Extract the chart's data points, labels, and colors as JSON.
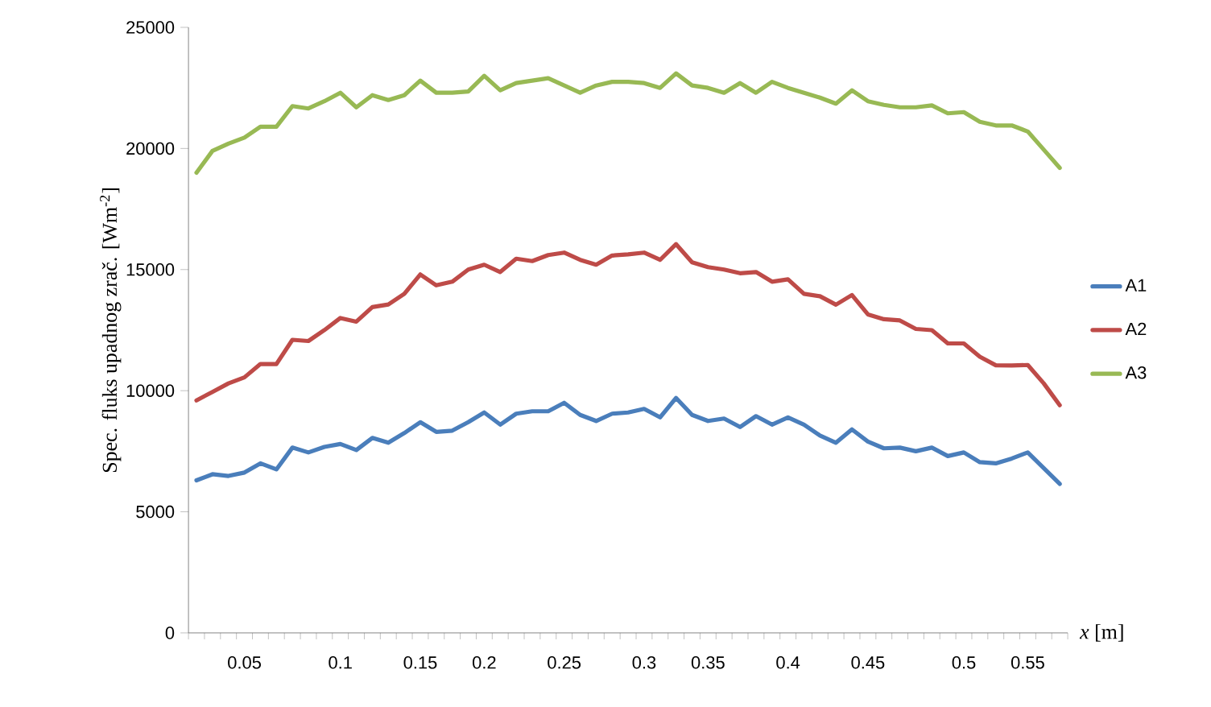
{
  "chart_data": {
    "type": "line",
    "xlabel": "*x* [m]",
    "ylabel": "Spec. fluks upadnog  zrač. [Wm$^{-2}$]",
    "categories": [
      null,
      null,
      null,
      "0.05",
      null,
      null,
      null,
      null,
      null,
      "0.1",
      null,
      null,
      null,
      null,
      "0.15",
      null,
      null,
      null,
      "0.2",
      null,
      null,
      null,
      null,
      "0.25",
      null,
      null,
      null,
      null,
      "0.3",
      null,
      null,
      null,
      "0.35",
      null,
      null,
      null,
      null,
      "0.4",
      null,
      null,
      null,
      null,
      "0.45",
      null,
      null,
      null,
      null,
      null,
      "0.5",
      null,
      null,
      null,
      "0.55",
      null,
      null
    ],
    "series": [
      {
        "name": "A1",
        "color": "#4a7ebb",
        "values": [
          6300,
          6550,
          6480,
          6620,
          7000,
          6750,
          7650,
          7450,
          7680,
          7800,
          7550,
          8050,
          7850,
          8250,
          8700,
          8300,
          8350,
          8700,
          9100,
          8600,
          9050,
          9150,
          9150,
          9500,
          9000,
          8750,
          9050,
          9100,
          9250,
          8900,
          9700,
          9000,
          8750,
          8850,
          8500,
          8950,
          8600,
          8900,
          8600,
          8150,
          7850,
          8400,
          7900,
          7620,
          7650,
          7500,
          7650,
          7300,
          7450,
          7050,
          7000,
          7200,
          7450,
          6800,
          6150
        ]
      },
      {
        "name": "A2",
        "color": "#be4b48",
        "values": [
          9600,
          9950,
          10300,
          10550,
          11100,
          11100,
          12100,
          12050,
          12500,
          13000,
          12850,
          13450,
          13560,
          14000,
          14800,
          14350,
          14500,
          15000,
          15200,
          14900,
          15450,
          15350,
          15600,
          15700,
          15400,
          15200,
          15580,
          15630,
          15700,
          15400,
          16050,
          15300,
          15100,
          15000,
          14850,
          14900,
          14500,
          14600,
          14000,
          13900,
          13550,
          13950,
          13150,
          12950,
          12900,
          12550,
          12500,
          11950,
          11950,
          11400,
          11050,
          11040,
          11060,
          10300,
          9400
        ]
      },
      {
        "name": "A3",
        "color": "#98b954",
        "values": [
          19000,
          19900,
          20200,
          20450,
          20900,
          20900,
          21750,
          21650,
          21950,
          22300,
          21700,
          22200,
          22000,
          22200,
          22800,
          22300,
          22300,
          22350,
          23000,
          22400,
          22700,
          22800,
          22900,
          22600,
          22300,
          22600,
          22750,
          22750,
          22700,
          22500,
          23100,
          22600,
          22500,
          22300,
          22700,
          22300,
          22750,
          22500,
          22300,
          22100,
          21850,
          22400,
          21950,
          21800,
          21700,
          21700,
          21780,
          21450,
          21500,
          21100,
          20950,
          20950,
          20700,
          19950,
          19200
        ]
      }
    ],
    "ylim": [
      0,
      25000
    ],
    "yticks": [
      0,
      5000,
      10000,
      15000,
      20000,
      25000
    ],
    "legend": "right",
    "marker": "none",
    "line_style": "solid"
  }
}
